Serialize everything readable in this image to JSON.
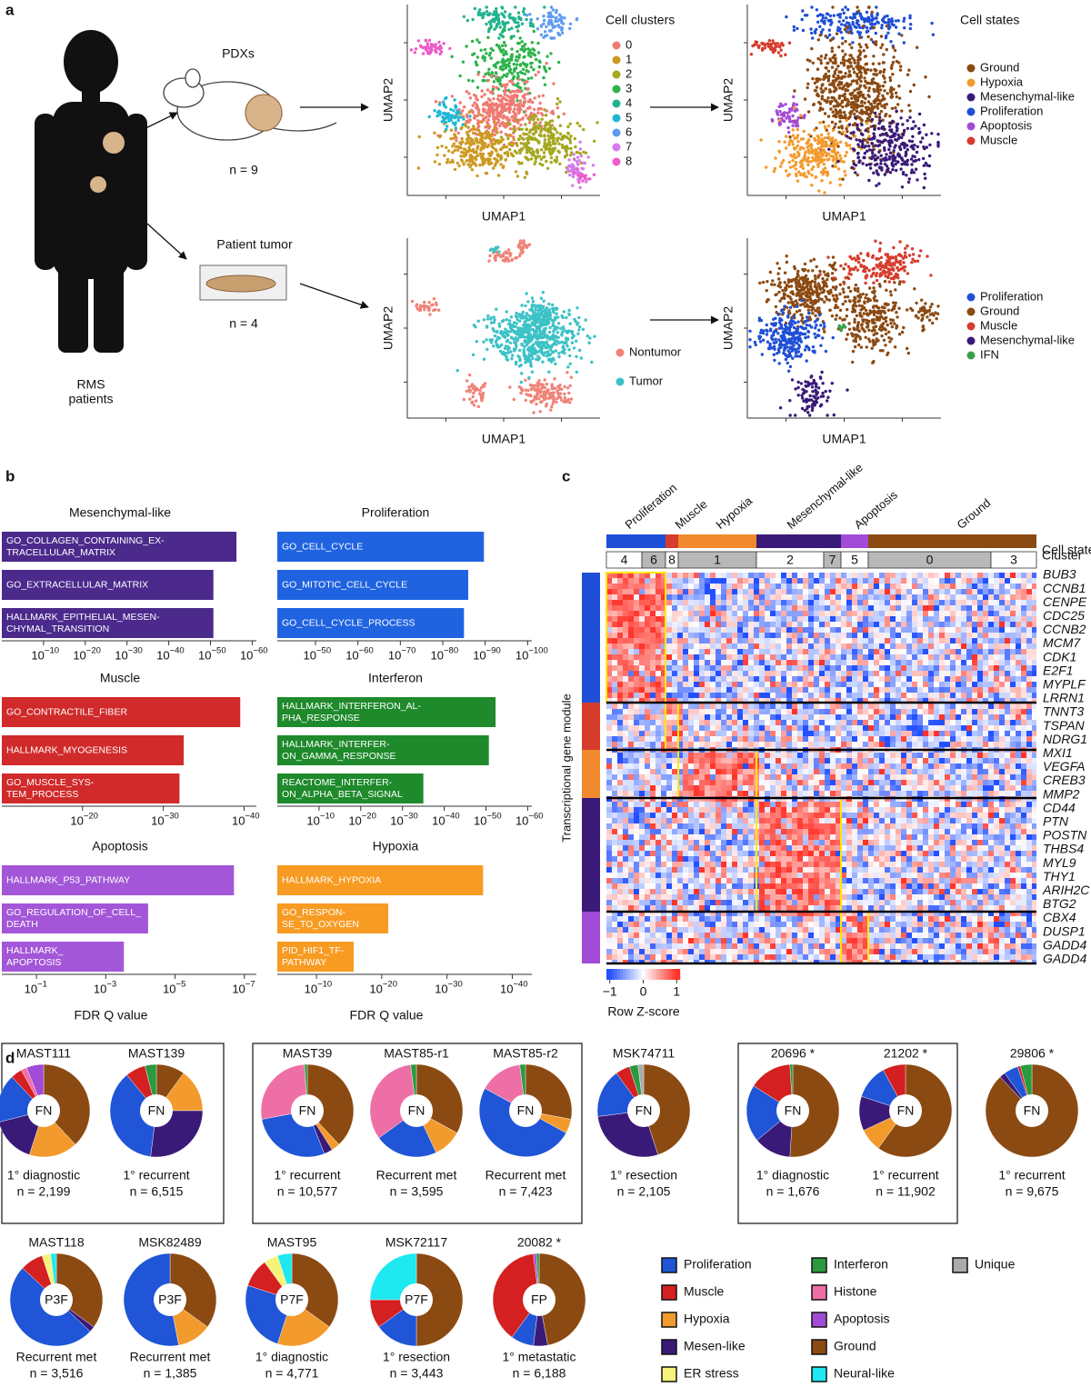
{
  "panel_a": {
    "label": "a",
    "pdx": "PDXs",
    "pdx_n": "n = 9",
    "patient": "Patient tumor",
    "patient_n": "n = 4",
    "patients": [
      "RMS",
      "patients"
    ],
    "umaps": [
      {
        "x_label": "UMAP1",
        "y_label": "UMAP2",
        "legend_title": "Cell clusters",
        "legend": [
          {
            "name": "0",
            "color": "#f07a72"
          },
          {
            "name": "1",
            "color": "#cc9a22"
          },
          {
            "name": "2",
            "color": "#a4a81e"
          },
          {
            "name": "3",
            "color": "#2cb34a"
          },
          {
            "name": "4",
            "color": "#22b38e"
          },
          {
            "name": "5",
            "color": "#1eb8d6"
          },
          {
            "name": "6",
            "color": "#5f9cf0"
          },
          {
            "name": "7",
            "color": "#d77af0"
          },
          {
            "name": "8",
            "color": "#ee5cc8"
          }
        ]
      },
      {
        "x_label": "UMAP1",
        "y_label": "UMAP2",
        "legend_title": "Cell states",
        "legend": [
          {
            "name": "Ground",
            "color": "#8b4a12"
          },
          {
            "name": "Hypoxia",
            "color": "#f39a2c"
          },
          {
            "name": "Mesenchymal-like",
            "color": "#3a1a78"
          },
          {
            "name": "Proliferation",
            "color": "#1f4fd6"
          },
          {
            "name": "Apoptosis",
            "color": "#a24bd6"
          },
          {
            "name": "Muscle",
            "color": "#d63c2c"
          }
        ]
      },
      {
        "x_label": "UMAP1",
        "y_label": "UMAP2",
        "legend": [
          {
            "name": "Nontumor",
            "color": "#f08378"
          },
          {
            "name": "Tumor",
            "color": "#3cc2c6"
          }
        ]
      },
      {
        "x_label": "UMAP1",
        "y_label": "UMAP2",
        "legend": [
          {
            "name": "Proliferation",
            "color": "#1f4fd6"
          },
          {
            "name": "Ground",
            "color": "#8b4a12"
          },
          {
            "name": "Muscle",
            "color": "#d63c2c"
          },
          {
            "name": "Mesenchymal-like",
            "color": "#3a1a78"
          },
          {
            "name": "IFN",
            "color": "#3aa04a"
          }
        ]
      }
    ]
  },
  "panel_b": {
    "label": "b",
    "charts": [
      {
        "title": "Mesenchymal-like",
        "color": "#4b2a8c",
        "xlim": [
          1,
          1e-61
        ],
        "xticks": [
          {
            "value": 1e-10,
            "label": "10",
            "sup": "−10"
          },
          {
            "value": 1e-20,
            "label": "10",
            "sup": "−20"
          },
          {
            "value": 1e-30,
            "label": "10",
            "sup": "−30"
          },
          {
            "value": 1e-40,
            "label": "10",
            "sup": "−40"
          },
          {
            "value": 1e-50,
            "label": "10",
            "sup": "−50"
          },
          {
            "value": 1e-60,
            "label": "10",
            "sup": "−60"
          }
        ],
        "bars": [
          {
            "label": [
              "GO_COLLAGEN_CONTAINING_EX-",
              "TRACELLULAR_MATRIX"
            ],
            "value": 6e-57
          },
          {
            "label": [
              "GO_EXTRACELLULAR_MATRIX"
            ],
            "value": 2e-51
          },
          {
            "label": [
              "HALLMARK_EPITHELIAL_MESEN-",
              "CHYMAL_TRANSITION"
            ],
            "value": 2e-51
          }
        ]
      },
      {
        "title": "Proliferation",
        "color": "#2063e0",
        "xlim": [
          1e-41,
          1e-101
        ],
        "xticks": [
          {
            "value": 1e-50,
            "label": "10",
            "sup": "−50"
          },
          {
            "value": 1e-60,
            "label": "10",
            "sup": "−60"
          },
          {
            "value": 1e-70,
            "label": "10",
            "sup": "−70"
          },
          {
            "value": 1e-80,
            "label": "10",
            "sup": "−80"
          },
          {
            "value": 1e-90,
            "label": "10",
            "sup": "−90"
          },
          {
            "value": 1e-100,
            "label": "10",
            "sup": "−100"
          }
        ],
        "bars": [
          {
            "label": [
              "GO_CELL_CYCLE"
            ],
            "value": 2e-90
          },
          {
            "label": [
              "GO_MITOTIC_CELL_CYCLE"
            ],
            "value": 1e-86
          },
          {
            "label": [
              "GO_CELL_CYCLE_PROCESS"
            ],
            "value": 1e-85
          }
        ]
      },
      {
        "title": "Muscle",
        "color": "#d02a2a",
        "xlim": [
          1e-10,
          3e-42
        ],
        "xticks": [
          {
            "value": 1e-20,
            "label": "10",
            "sup": "−20"
          },
          {
            "value": 1e-30,
            "label": "10",
            "sup": "−30"
          },
          {
            "value": 1e-40,
            "label": "10",
            "sup": "−40"
          }
        ],
        "bars": [
          {
            "label": [
              "GO_CONTRACTILE_FIBER"
            ],
            "value": 3e-40
          },
          {
            "label": [
              "HALLMARK_MYOGENESIS"
            ],
            "value": 3e-33
          },
          {
            "label": [
              "GO_MUSCLE_SYS-",
              "TEM_PROCESS"
            ],
            "value": 1e-32
          }
        ]
      },
      {
        "title": "Interferon",
        "color": "#1f8a2c",
        "xlim": [
          1,
          1e-61
        ],
        "xticks": [
          {
            "value": 1e-10,
            "label": "10",
            "sup": "−10"
          },
          {
            "value": 1e-20,
            "label": "10",
            "sup": "−20"
          },
          {
            "value": 1e-30,
            "label": "10",
            "sup": "−30"
          },
          {
            "value": 1e-40,
            "label": "10",
            "sup": "−40"
          },
          {
            "value": 1e-50,
            "label": "10",
            "sup": "−50"
          },
          {
            "value": 1e-60,
            "label": "10",
            "sup": "−60"
          }
        ],
        "bars": [
          {
            "label": [
              "HALLMARK_INTERFERON_AL-",
              "PHA_RESPONSE"
            ],
            "value": 5e-53
          },
          {
            "label": [
              "HALLMARK_INTERFER-",
              "ON_GAMMA_RESPONSE"
            ],
            "value": 2e-51
          },
          {
            "label": [
              "REACTOME_INTERFER-",
              "ON_ALPHA_BETA_SIGNAL"
            ],
            "value": 1e-35
          }
        ]
      },
      {
        "title": "Apoptosis",
        "color": "#a356d8",
        "xlim": [
          1,
          4.5e-08
        ],
        "x_label": "FDR Q value",
        "xticks": [
          {
            "value": 0.1,
            "label": "10",
            "sup": "−1"
          },
          {
            "value": 0.001,
            "label": "10",
            "sup": "−3"
          },
          {
            "value": 1e-05,
            "label": "10",
            "sup": "−5"
          },
          {
            "value": 1e-07,
            "label": "10",
            "sup": "−7"
          }
        ],
        "bars": [
          {
            "label": [
              "HALLMARK_P53_PATHWAY"
            ],
            "value": 2e-07
          },
          {
            "label": [
              "GO_REGULATION_OF_CELL_",
              "DEATH"
            ],
            "value": 6e-05
          },
          {
            "label": [
              "HALLMARK_",
              "APOPTOSIS"
            ],
            "value": 0.0003
          }
        ]
      },
      {
        "title": "Hypoxia",
        "color": "#f79b22",
        "xlim": [
          0.0001,
          1e-43
        ],
        "x_label": "FDR Q value",
        "xticks": [
          {
            "value": 1e-10,
            "label": "10",
            "sup": "−10"
          },
          {
            "value": 1e-20,
            "label": "10",
            "sup": "−20"
          },
          {
            "value": 1e-30,
            "label": "10",
            "sup": "−30"
          },
          {
            "value": 1e-40,
            "label": "10",
            "sup": "−40"
          }
        ],
        "bars": [
          {
            "label": [
              "HALLMARK_HYPOXIA"
            ],
            "value": 3e-36
          },
          {
            "label": [
              "GO_RESPON-",
              "SE_TO_OXYGEN"
            ],
            "value": 1e-21
          },
          {
            "label": [
              "PID_HIF1_TF-",
              "PATHWAY"
            ],
            "value": 2e-16
          }
        ]
      }
    ]
  },
  "panel_c": {
    "label": "c",
    "states_title": "Cell states",
    "cluster_title": "Cluster",
    "y_label": "Transcriptional gene module",
    "states": [
      {
        "name": "Proliferation",
        "color": "#1f4fd6"
      },
      {
        "name": "Muscle",
        "color": "#d63c2c"
      },
      {
        "name": "Hypoxia",
        "color": "#f08a2c"
      },
      {
        "name": "Mesenchymal-like",
        "color": "#3a1a78"
      },
      {
        "name": "Apoptosis",
        "color": "#a24bd6"
      },
      {
        "name": "Ground",
        "color": "#8b4a12"
      }
    ],
    "clusters": [
      "4",
      "6",
      "8",
      "1",
      "2",
      "7",
      "5",
      "0",
      "3"
    ],
    "genes": [
      "BUB3",
      "CCNB1",
      "CENPE",
      "CDC25",
      "CCNB2",
      "MCM7",
      "CDK1",
      "E2F1",
      "MYPLF",
      "LRRN1",
      "TNNT3",
      "TSPAN",
      "NDRG1",
      "MXI1",
      "VEGFA",
      "CREB3",
      "MMP2",
      "CD44",
      "PTN",
      "POSTN",
      "THBS4",
      "MYL9",
      "THY1",
      "ARIH2C",
      "BTG2",
      "CBX4",
      "DUSP1",
      "GADD4",
      "GADD4"
    ],
    "colorbar": {
      "title": "Row Z-score",
      "clim": [
        -1.1,
        1.1
      ],
      "ticks": [
        {
          "value": -1,
          "label": "−1"
        },
        0,
        1
      ]
    }
  },
  "panel_d": {
    "label": "d",
    "categories": [
      {
        "name": "Proliferation",
        "color": "#1f55d6"
      },
      {
        "name": "Muscle",
        "color": "#d42020"
      },
      {
        "name": "Hypoxia",
        "color": "#f39a2c"
      },
      {
        "name": "Mesen-like",
        "color": "#3a1a78"
      },
      {
        "name": "ER stress",
        "color": "#f7f27a"
      },
      {
        "name": "Interferon",
        "color": "#2a9a3e"
      },
      {
        "name": "Histone",
        "color": "#ee6fa6"
      },
      {
        "name": "Apoptosis",
        "color": "#a24bd6"
      },
      {
        "name": "Ground",
        "color": "#8b4a12"
      },
      {
        "name": "Neural-like",
        "color": "#1ee8f0"
      },
      {
        "name": "Unique",
        "color": "#aaaaaa"
      }
    ],
    "samples": [
      {
        "name": "MAST111",
        "subtype": "FN",
        "desc": "1° diagnostic",
        "n": "n = 2,199",
        "values": [
          17,
          4,
          17,
          16,
          0,
          0,
          2,
          6,
          38,
          0,
          0
        ]
      },
      {
        "name": "MAST139",
        "subtype": "FN",
        "desc": "1° recurrent",
        "n": "n = 6,515",
        "values": [
          37,
          7,
          15,
          27,
          0,
          4,
          0,
          0,
          10,
          0,
          0
        ]
      },
      {
        "name": "MAST39",
        "subtype": "FN",
        "desc": "1° recurrent",
        "n": "n = 10,577",
        "values": [
          28,
          0,
          3,
          3,
          0,
          1,
          27,
          0,
          38,
          0,
          0
        ]
      },
      {
        "name": "MAST85-r1",
        "subtype": "FN",
        "desc": "Recurrent met",
        "n": "n = 3,595",
        "values": [
          22,
          0,
          10,
          0,
          0,
          2,
          33,
          0,
          33,
          0,
          0
        ]
      },
      {
        "name": "MAST85-r2",
        "subtype": "FN",
        "desc": "Recurrent met",
        "n": "n = 7,423",
        "values": [
          50,
          0,
          5,
          0,
          0,
          2,
          15,
          0,
          28,
          0,
          0
        ]
      },
      {
        "name": "MSK74711",
        "subtype": "FN",
        "desc": "1° resection",
        "n": "n = 2,105",
        "values": [
          17,
          5,
          0,
          28,
          0,
          3,
          0,
          0,
          45,
          0,
          2
        ]
      },
      {
        "name": "20696 *",
        "subtype": "FN",
        "desc": "1° diagnostic",
        "n": "n = 1,676",
        "values": [
          20,
          15,
          0,
          13,
          0,
          1,
          0,
          0,
          51,
          0,
          0
        ]
      },
      {
        "name": "21202 *",
        "subtype": "FN",
        "desc": "1° recurrent",
        "n": "n = 11,902",
        "values": [
          12,
          8,
          8,
          12,
          0,
          0,
          0,
          0,
          60,
          0,
          0
        ]
      },
      {
        "name": "29806 *",
        "subtype": "FN",
        "desc": "1° recurrent",
        "n": "n = 9,675",
        "values": [
          5,
          1,
          0,
          2,
          0,
          4,
          0,
          0,
          88,
          0,
          0
        ]
      },
      {
        "name": "MAST118",
        "subtype": "P3F",
        "desc": "Recurrent met",
        "n": "n = 3,516",
        "values": [
          50,
          8,
          0,
          2,
          3,
          0,
          0,
          0,
          35,
          2,
          0
        ]
      },
      {
        "name": "MSK82489",
        "subtype": "P3F",
        "desc": "Recurrent met",
        "n": "n = 1,385",
        "values": [
          53,
          0,
          12,
          0,
          0,
          0,
          0,
          0,
          35,
          0,
          0
        ]
      },
      {
        "name": "MAST95",
        "subtype": "P7F",
        "desc": "1° diagnostic",
        "n": "n = 4,771",
        "values": [
          25,
          10,
          20,
          0,
          5,
          0,
          0,
          0,
          35,
          5,
          0
        ]
      },
      {
        "name": "MSK72117",
        "subtype": "P7F",
        "desc": "1° resection",
        "n": "n = 3,443",
        "values": [
          15,
          10,
          0,
          0,
          0,
          0,
          0,
          0,
          50,
          25,
          0
        ]
      },
      {
        "name": "20082 *",
        "subtype": "FP",
        "desc": "1° metastatic",
        "n": "n = 6,188",
        "values": [
          8,
          38,
          0,
          5,
          0,
          1,
          0,
          1,
          47,
          0,
          0
        ]
      }
    ]
  }
}
